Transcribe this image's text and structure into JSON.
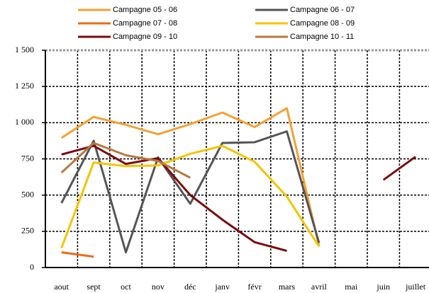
{
  "chart_data": {
    "type": "line",
    "categories": [
      "aout",
      "sept",
      "oct",
      "nov",
      "déc",
      "janv",
      "févr",
      "mars",
      "avril",
      "mai",
      "juin",
      "juillet"
    ],
    "series": [
      {
        "name": "Campagne 05 - 06",
        "color": "#f7a030",
        "values": [
          895,
          1040,
          985,
          920,
          990,
          1070,
          970,
          1100,
          150,
          null,
          null,
          null
        ]
      },
      {
        "name": "Campagne 06 - 07",
        "color": "#555555",
        "values": [
          445,
          875,
          105,
          760,
          440,
          860,
          865,
          940,
          170,
          null,
          null,
          null
        ]
      },
      {
        "name": "Campagne 07 - 08",
        "color": "#f06a1a",
        "values": [
          105,
          75,
          null,
          null,
          null,
          null,
          null,
          null,
          null,
          null,
          null,
          null
        ]
      },
      {
        "name": "Campagne 08 - 09",
        "color": "#f5c400",
        "values": [
          135,
          725,
          700,
          705,
          785,
          840,
          730,
          490,
          145,
          null,
          null,
          null
        ]
      },
      {
        "name": "Campagne 09 - 10",
        "color": "#7a0c0c",
        "values": [
          780,
          840,
          715,
          755,
          500,
          330,
          175,
          115,
          null,
          null,
          605,
          765
        ]
      },
      {
        "name": "Campagne 10 - 11",
        "color": "#b87840",
        "values": [
          655,
          860,
          775,
          735,
          620,
          null,
          null,
          null,
          null,
          null,
          null,
          null
        ]
      }
    ],
    "ylim": [
      0,
      1500
    ],
    "yticks": [
      0,
      250,
      500,
      750,
      {
        "value": 1000,
        "label": "1 000"
      },
      {
        "value": 1250,
        "label": "1 250"
      },
      {
        "value": 1500,
        "label": "1 500"
      }
    ],
    "grid": true
  }
}
